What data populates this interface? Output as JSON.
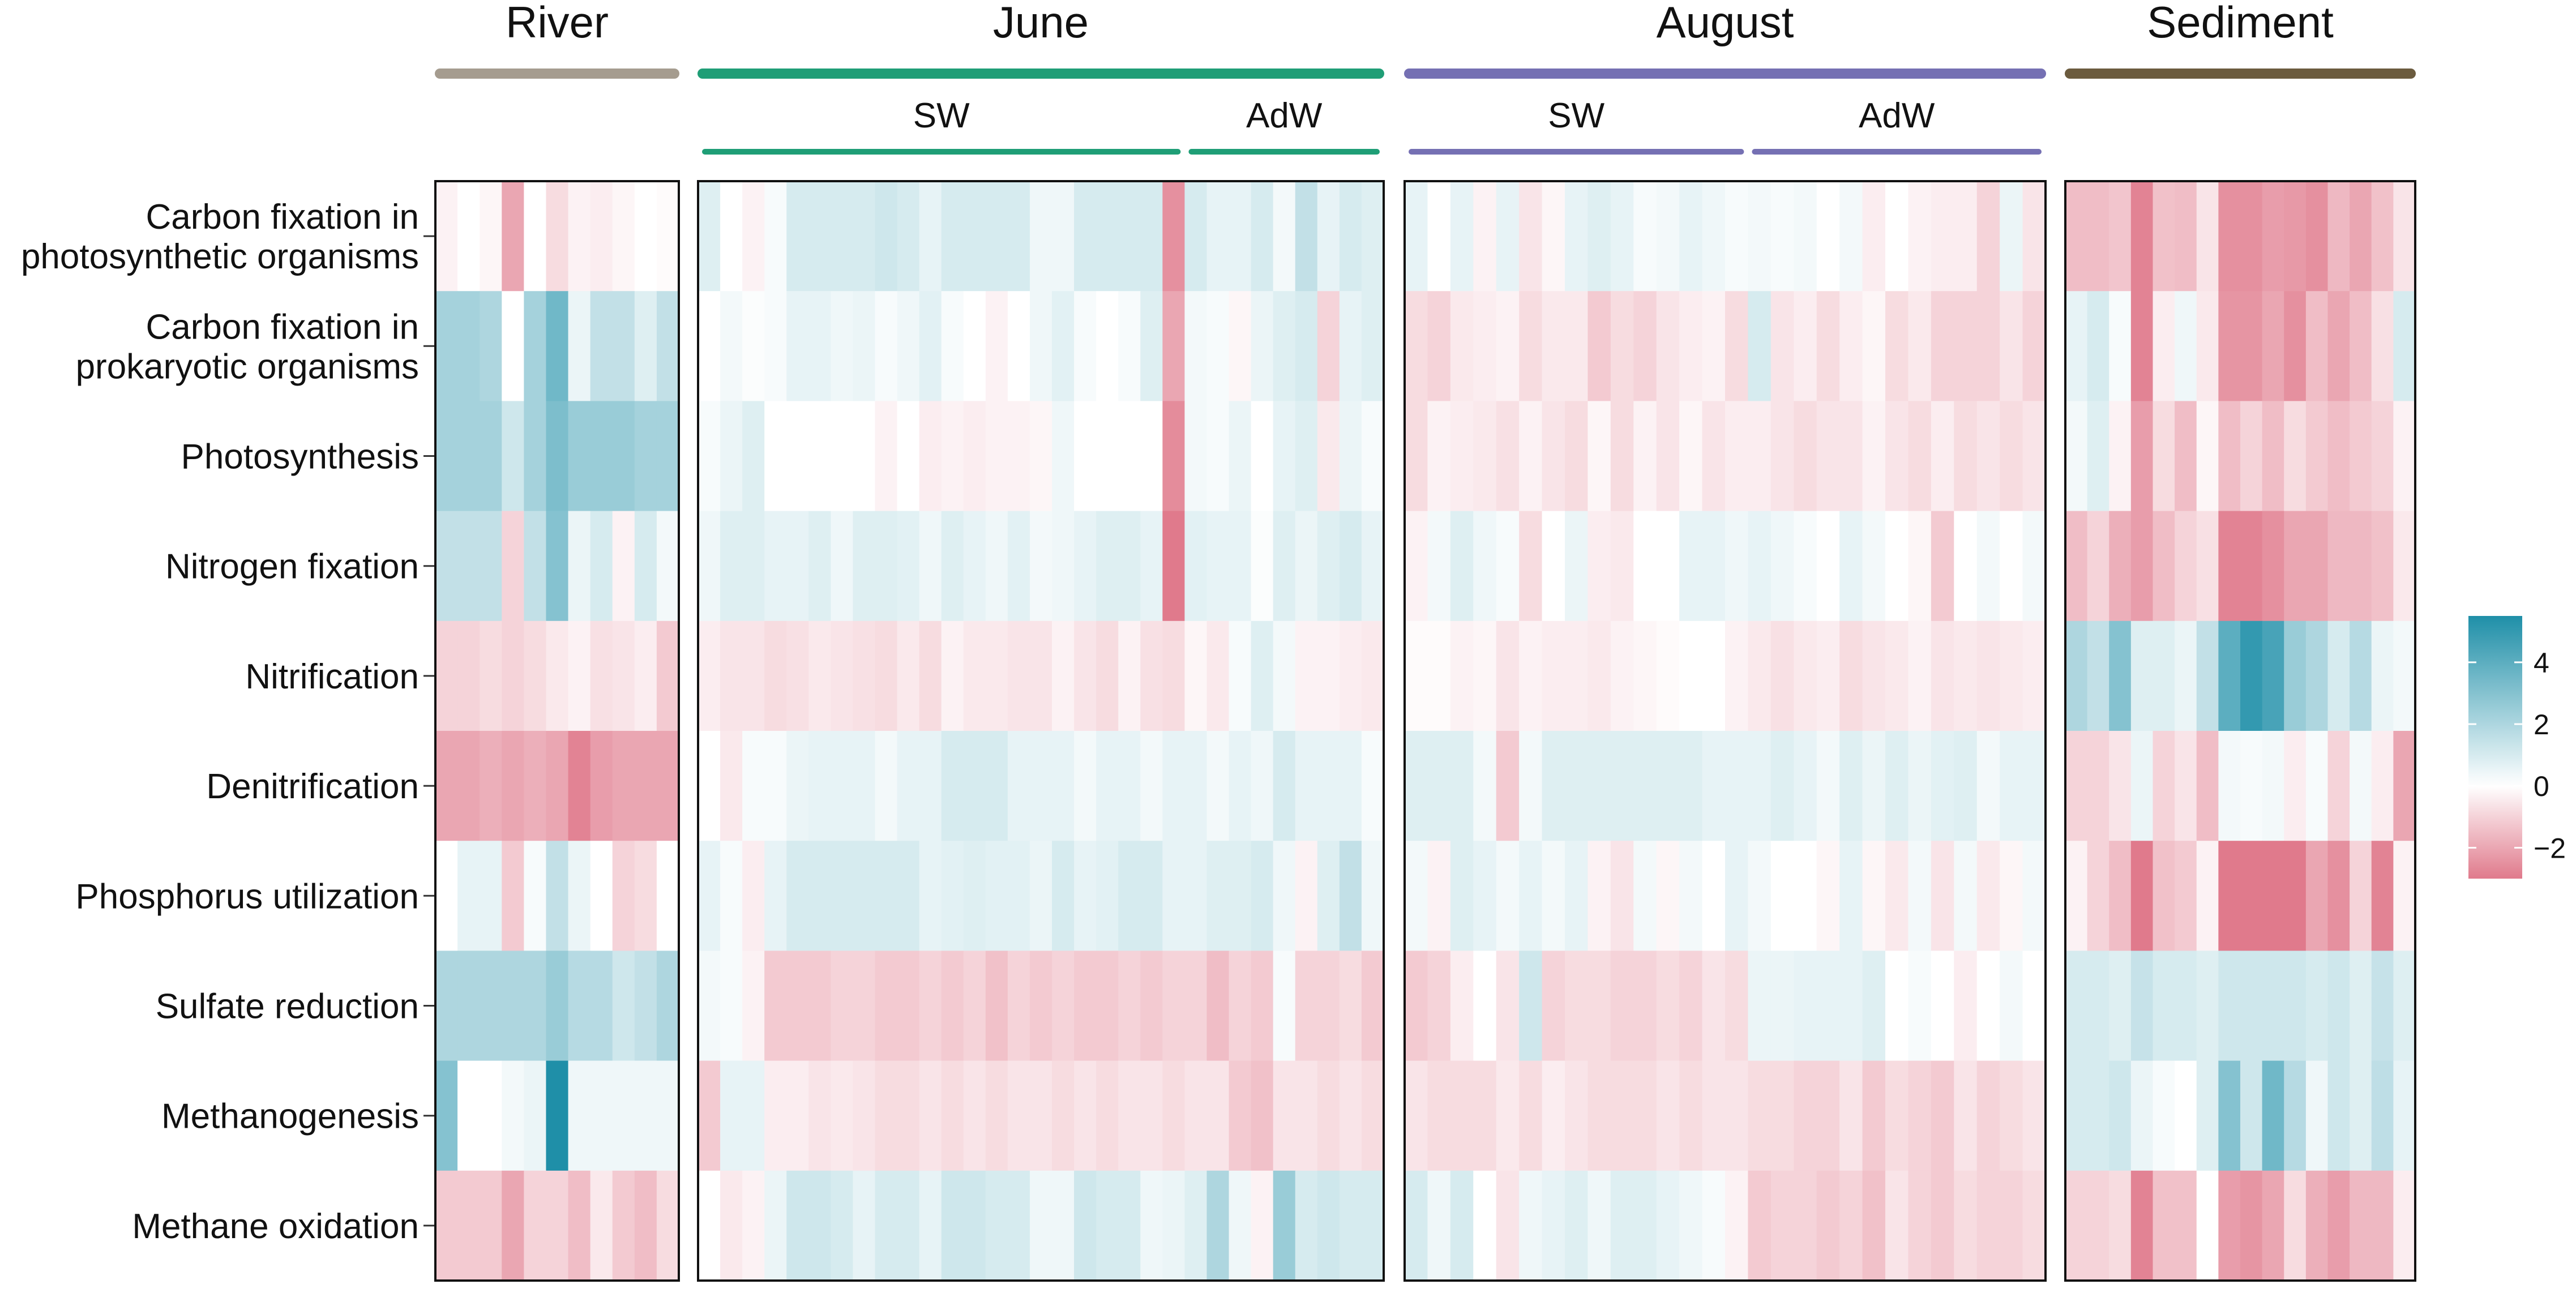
{
  "chart_data": {
    "type": "heatmap",
    "rows": [
      "Carbon fixation in\nphotosynthetic organisms",
      "Carbon fixation in\nprokaryotic organisms",
      "Photosynthesis",
      "Nitrogen fixation",
      "Nitrification",
      "Denitrification",
      "Phosphorus utilization",
      "Sulfate reduction",
      "Methanogenesis",
      "Methane oxidation"
    ],
    "panels": [
      {
        "name": "River",
        "color": "#a59c8f",
        "subgroups": [],
        "values": [
          [
            -0.3,
            0,
            -0.2,
            -2,
            0,
            -0.8,
            -0.3,
            -0.4,
            -0.2,
            0,
            -0.1
          ],
          [
            2.2,
            2.2,
            2.0,
            0,
            2.2,
            3.5,
            0.5,
            1.5,
            1.5,
            0.8,
            1.5
          ],
          [
            2.2,
            2.2,
            2.2,
            1.2,
            2.2,
            3.2,
            2.5,
            2.5,
            2.5,
            2.2,
            2.2
          ],
          [
            1.5,
            1.5,
            1.5,
            -1,
            1.5,
            3,
            0.5,
            1,
            -0.3,
            1,
            0.3
          ],
          [
            -1,
            -1,
            -0.8,
            -1,
            -0.8,
            -0.5,
            -0.3,
            -0.7,
            -0.6,
            -0.4,
            -1.2
          ],
          [
            -2,
            -2,
            -1.8,
            -2,
            -1.8,
            -2,
            -2.8,
            -2.2,
            -2,
            -2,
            -2
          ],
          [
            0,
            0.6,
            0.6,
            -1.2,
            0.2,
            1.5,
            0.5,
            0,
            -1,
            -0.8,
            0
          ],
          [
            2,
            2,
            2,
            2,
            2,
            2.5,
            1.8,
            1.8,
            1.2,
            1.5,
            2
          ],
          [
            3,
            0,
            0,
            0.3,
            0.5,
            5.5,
            0.4,
            0.4,
            0.4,
            0.4,
            0.4
          ],
          [
            -1.2,
            -1.2,
            -1.2,
            -2,
            -1,
            -1,
            -1.5,
            -0.5,
            -1.2,
            -1.5,
            -0.8
          ]
        ]
      },
      {
        "name": "June",
        "color": "#1f9e76",
        "subgroups": [
          {
            "name": "SW",
            "cols": 22
          },
          {
            "name": "AdW",
            "cols": 9
          }
        ],
        "values": [
          [
            0.8,
            0,
            -0.3,
            0.2,
            1,
            1,
            1,
            1,
            1.2,
            1,
            0.6,
            1,
            1,
            1,
            1,
            0.4,
            0.4,
            1,
            1,
            1,
            1,
            -2.5,
            1,
            0.6,
            0.6,
            1,
            0.3,
            1.5,
            0.6,
            1,
            0.8
          ],
          [
            0,
            0.3,
            0.1,
            0.2,
            0.6,
            0.6,
            0.4,
            0.5,
            0.2,
            0.4,
            0.7,
            0.2,
            0,
            -0.3,
            0,
            0.4,
            0.7,
            0.2,
            0,
            0.2,
            0.8,
            -2,
            0.3,
            0.2,
            -0.2,
            0.5,
            0.8,
            1,
            -1,
            0.6,
            0.8
          ],
          [
            0.2,
            0.5,
            0.8,
            0,
            0,
            0,
            0,
            0,
            -0.3,
            0,
            -0.4,
            -0.3,
            -0.4,
            -0.3,
            -0.3,
            -0.2,
            0.4,
            0,
            0,
            0,
            0,
            -2.6,
            0.3,
            0.2,
            0.5,
            0,
            0.6,
            0.8,
            -0.5,
            0.5,
            0.2
          ],
          [
            0.4,
            0.8,
            0.8,
            0.6,
            0.6,
            0.8,
            0.4,
            0.8,
            0.8,
            0.7,
            0.4,
            0.8,
            0.6,
            0.4,
            0.7,
            0.3,
            0.4,
            0.6,
            0.8,
            0.8,
            0.6,
            -3,
            0.7,
            0.6,
            0.6,
            0.1,
            0.8,
            0.5,
            0.8,
            1,
            0.6
          ],
          [
            -0.4,
            -0.6,
            -0.6,
            -0.8,
            -0.7,
            -0.5,
            -0.6,
            -0.7,
            -0.8,
            -0.5,
            -0.8,
            -0.3,
            -0.5,
            -0.5,
            -0.6,
            -0.6,
            -0.3,
            -0.6,
            -0.8,
            -0.3,
            -0.7,
            -0.8,
            -0.2,
            -0.5,
            0.2,
            0.8,
            0.3,
            -0.3,
            -0.3,
            -0.4,
            -0.5
          ],
          [
            0,
            -0.5,
            0.2,
            0.2,
            0.5,
            0.6,
            0.6,
            0.6,
            0.3,
            0.6,
            0.6,
            1,
            1,
            1,
            0.6,
            0.6,
            0.6,
            0.3,
            0.6,
            0.6,
            0.3,
            0.6,
            0.6,
            0.3,
            0.6,
            0.4,
            1,
            0.6,
            0.6,
            0.6,
            0.2
          ],
          [
            0.6,
            0.2,
            -0.4,
            0.6,
            1,
            1,
            1,
            1,
            1,
            1,
            0.6,
            0.7,
            0.8,
            0.7,
            0.7,
            0.5,
            1,
            0.6,
            0.7,
            1,
            1,
            0.6,
            0.6,
            0.8,
            0.8,
            1,
            0.4,
            -0.3,
            0.8,
            1.5,
            0.4
          ],
          [
            0.3,
            0.2,
            -0.3,
            -1.2,
            -1.2,
            -1.2,
            -1,
            -1,
            -1.2,
            -1.2,
            -1,
            -1.2,
            -1,
            -1.4,
            -1,
            -1.2,
            -1,
            -1.2,
            -1.2,
            -1,
            -1.2,
            -1,
            -1,
            -1.5,
            -1,
            -1.2,
            0.2,
            -1,
            -1,
            -0.8,
            -1.2
          ],
          [
            -1.2,
            0.6,
            0.6,
            -0.4,
            -0.4,
            -0.6,
            -0.5,
            -0.6,
            -0.8,
            -0.8,
            -0.6,
            -0.8,
            -0.6,
            -0.8,
            -0.6,
            -0.6,
            -0.8,
            -0.6,
            -0.8,
            -0.6,
            -0.6,
            -0.8,
            -0.6,
            -0.6,
            -1.2,
            -1.4,
            -0.6,
            -0.6,
            -0.8,
            -0.6,
            -0.8
          ],
          [
            0,
            -0.5,
            -0.3,
            0.5,
            1.2,
            1.2,
            1,
            0.6,
            1,
            1,
            0.6,
            1.2,
            1.2,
            1,
            1,
            0.4,
            0.4,
            1.2,
            1,
            1,
            0.4,
            0.5,
            0.8,
            2,
            0.4,
            -0.3,
            2.5,
            1,
            1.2,
            1,
            1
          ]
        ]
      },
      {
        "name": "August",
        "color": "#7570b3",
        "subgroups": [
          {
            "name": "SW",
            "cols": 15
          },
          {
            "name": "AdW",
            "cols": 13
          }
        ],
        "values": [
          [
            0.6,
            0,
            0.6,
            -0.3,
            0.6,
            -0.6,
            -0.2,
            0.6,
            0.8,
            0.6,
            0.2,
            0.3,
            0.6,
            0.4,
            0.2,
            0.3,
            0.2,
            0.3,
            0,
            0.3,
            -0.4,
            0,
            -0.3,
            -0.4,
            -0.4,
            -1,
            0.5,
            -0.6
          ],
          [
            -0.8,
            -1,
            -0.5,
            -0.4,
            -0.3,
            -0.8,
            -0.5,
            -0.5,
            -1.2,
            -0.8,
            -1,
            -0.6,
            -0.4,
            -0.3,
            -0.8,
            1,
            -0.6,
            -0.4,
            -0.8,
            -0.4,
            -0.2,
            -0.8,
            -0.5,
            -1,
            -1,
            -1,
            -0.6,
            -1
          ],
          [
            -0.8,
            -0.3,
            -0.4,
            -0.5,
            -0.7,
            -0.3,
            -0.6,
            -0.8,
            -0.2,
            -0.8,
            -0.3,
            -0.6,
            -0.2,
            -0.6,
            -0.4,
            -0.4,
            -0.6,
            -0.8,
            -0.6,
            -0.6,
            -0.3,
            -0.6,
            -0.8,
            -0.4,
            -0.8,
            -0.6,
            -0.8,
            -0.6
          ],
          [
            -0.3,
            0.3,
            0.8,
            0.4,
            0.2,
            -0.8,
            0,
            0.5,
            -0.4,
            -0.5,
            0,
            0,
            0.6,
            0.6,
            0.4,
            0.6,
            0.4,
            0.2,
            0,
            0.6,
            0.3,
            0,
            -0.2,
            -1.2,
            0,
            0.3,
            0,
            0.3
          ],
          [
            -0.1,
            -0.1,
            -0.3,
            -0.2,
            -0.6,
            -0.3,
            -0.4,
            -0.4,
            -0.5,
            -0.3,
            -0.2,
            -0.1,
            0,
            0,
            -0.3,
            -0.5,
            -0.7,
            -0.5,
            -0.4,
            -0.8,
            -0.6,
            -0.5,
            -0.3,
            -0.6,
            -0.5,
            -0.6,
            -0.5,
            -0.4
          ],
          [
            0.8,
            0.8,
            0.8,
            0.3,
            -1.2,
            0.3,
            0.8,
            0.8,
            0.8,
            0.8,
            0.8,
            0.8,
            0.8,
            0.6,
            0.6,
            0.6,
            0.8,
            0.6,
            0.3,
            0.8,
            0.5,
            0.8,
            0.5,
            0.7,
            0.8,
            0.3,
            0.6,
            0.6
          ],
          [
            0.3,
            -0.3,
            0.8,
            0.6,
            0.3,
            0.6,
            0.3,
            0.6,
            -0.3,
            -0.6,
            0.3,
            -0.2,
            0.3,
            0,
            0.6,
            0.3,
            0,
            0,
            -0.2,
            0.6,
            -0.2,
            -0.5,
            0.3,
            -0.6,
            0.3,
            -0.5,
            -0.2,
            0.3
          ],
          [
            -1.2,
            -1,
            -0.4,
            0,
            -0.6,
            1.2,
            -1,
            -0.8,
            -0.8,
            -1,
            -1,
            -0.8,
            -1,
            -0.6,
            -0.8,
            0.5,
            0.5,
            0.6,
            0.6,
            0.6,
            0.8,
            0,
            0.2,
            0,
            -0.4,
            0,
            0.3,
            0
          ],
          [
            -0.6,
            -0.8,
            -0.8,
            -0.8,
            -0.5,
            -0.8,
            -0.4,
            -0.6,
            -0.8,
            -0.8,
            -0.8,
            -0.6,
            -0.8,
            -0.6,
            -0.6,
            -0.8,
            -0.8,
            -1,
            -1,
            -0.6,
            -1.2,
            -0.8,
            -1,
            -1.2,
            -0.6,
            -1,
            -0.8,
            -0.6
          ],
          [
            1,
            0.4,
            1,
            0,
            -0.6,
            0.4,
            0.6,
            0.8,
            0.4,
            0.8,
            0.8,
            0.6,
            0.4,
            0.2,
            -0.3,
            -1.2,
            -1,
            -1,
            -1.2,
            -1,
            -1.4,
            -0.6,
            -1,
            -1.2,
            -0.8,
            -1,
            -1,
            -0.8
          ]
        ]
      },
      {
        "name": "Sediment",
        "color": "#6b5b3e",
        "subgroups": [],
        "values": [
          [
            -1.5,
            -1.5,
            -1.3,
            -2.8,
            -1.4,
            -1.5,
            -0.6,
            -2.5,
            -2.5,
            -2.2,
            -2.3,
            -2.5,
            -1.6,
            -2,
            -1.4,
            -0.6
          ],
          [
            0.6,
            1,
            0.2,
            -2.8,
            -0.4,
            0.4,
            -0.5,
            -2.4,
            -2.4,
            -2,
            -2.5,
            -1.5,
            -2,
            -1.5,
            -0.7,
            1
          ],
          [
            0.3,
            0.8,
            -0.3,
            -2.2,
            -0.8,
            -1.5,
            -0.2,
            -1.5,
            -1,
            -1.5,
            -0.8,
            -1.2,
            -1.5,
            -1.2,
            -1,
            -0.3
          ],
          [
            -1.5,
            -1,
            -1.8,
            -2.2,
            -1.5,
            -1,
            -0.7,
            -2.8,
            -2.8,
            -2.5,
            -2,
            -2,
            -1.6,
            -1.6,
            -1.4,
            -0.5
          ],
          [
            2,
            1.5,
            3,
            0.8,
            0.8,
            0.5,
            1.5,
            4,
            5,
            4.5,
            2.5,
            2,
            1,
            1.8,
            0.5,
            0.3
          ],
          [
            -1,
            -1,
            -0.6,
            0.5,
            -1,
            -0.6,
            -1.5,
            0.3,
            0.2,
            0.3,
            -0.4,
            0.2,
            -1,
            0.3,
            -0.4,
            -2
          ],
          [
            -0.3,
            -1,
            -1.5,
            -3,
            -1.4,
            -1.2,
            -0.3,
            -3.5,
            -3.5,
            -3,
            -3,
            -2,
            -2.5,
            -1,
            -2.8,
            -0.3
          ],
          [
            1,
            1,
            0.8,
            1.4,
            1,
            1,
            0.8,
            1.2,
            1.2,
            1.2,
            1.2,
            1,
            1.2,
            0.8,
            1.4,
            0.8
          ],
          [
            1,
            1,
            1.2,
            0.5,
            0.2,
            0,
            0.8,
            3,
            1.2,
            3.5,
            1.8,
            0.4,
            1.2,
            0.8,
            1.6,
            0.6
          ],
          [
            -1,
            -1,
            -0.8,
            -2.8,
            -1.4,
            -1.4,
            0,
            -2.2,
            -2.4,
            -2,
            -0.8,
            -1.8,
            -2.2,
            -1.6,
            -1.6,
            -0.4
          ]
        ]
      }
    ],
    "legend": {
      "min": -3,
      "max": 5.5,
      "ticks": [
        4,
        2,
        0,
        -2
      ],
      "tick_labels": [
        "4",
        "2",
        "0",
        "−2"
      ],
      "colors": {
        "low": "#e07a8c",
        "mid": "#ffffff",
        "high": "#1f8fa8"
      }
    }
  }
}
